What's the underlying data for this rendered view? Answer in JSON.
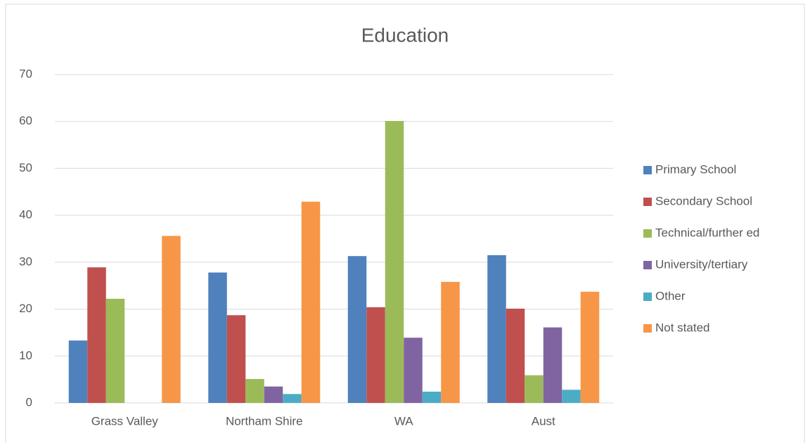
{
  "chart_data": {
    "type": "bar",
    "title": "Education",
    "categories": [
      "Grass Valley",
      "Northam Shire",
      "WA",
      "Aust"
    ],
    "series": [
      {
        "name": "Primary School",
        "color": "#4f81bd",
        "values": [
          13.3,
          27.8,
          31.3,
          31.5
        ]
      },
      {
        "name": "Secondary School",
        "color": "#c0504d",
        "values": [
          28.9,
          18.7,
          20.4,
          20.1
        ]
      },
      {
        "name": "Technical/further ed",
        "color": "#9bbb59",
        "values": [
          22.2,
          5.1,
          60.1,
          5.9
        ]
      },
      {
        "name": "University/tertiary",
        "color": "#8064a2",
        "values": [
          0,
          3.5,
          13.9,
          16.1
        ]
      },
      {
        "name": "Other",
        "color": "#4bacc6",
        "values": [
          0,
          1.9,
          2.4,
          2.8
        ]
      },
      {
        "name": "Not stated",
        "color": "#f79646",
        "values": [
          35.6,
          42.9,
          25.8,
          23.7
        ]
      }
    ],
    "ylim": [
      0,
      70
    ],
    "yticks": [
      0,
      10,
      20,
      30,
      40,
      50,
      60,
      70
    ],
    "grid": true,
    "legend": "right"
  }
}
